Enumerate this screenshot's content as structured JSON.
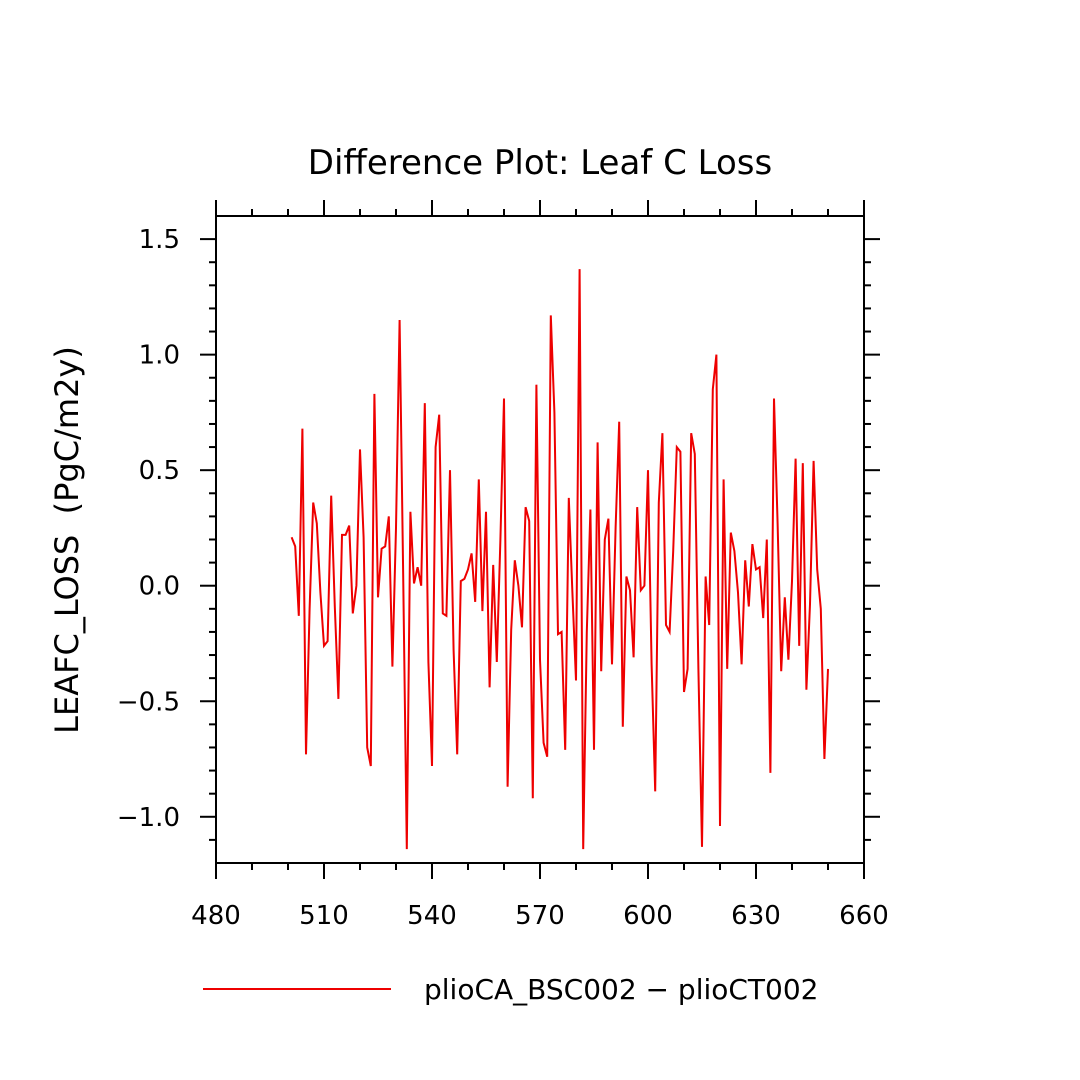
{
  "chart_data": {
    "type": "line",
    "title": "Difference Plot: Leaf C Loss",
    "xlabel": "",
    "ylabel": "LEAFC_LOSS  (PgC/m2y)",
    "xlim": [
      480,
      660
    ],
    "ylim": [
      -1.2,
      1.6
    ],
    "x_ticks": [
      480,
      510,
      540,
      570,
      600,
      630,
      660
    ],
    "x_tick_labels": [
      "480",
      "510",
      "540",
      "570",
      "600",
      "630",
      "660"
    ],
    "y_ticks": [
      1.5,
      1.0,
      0.5,
      0.0,
      -0.5,
      -1.0
    ],
    "y_tick_labels": [
      "1.5",
      "1.0",
      "0.5",
      "0.0",
      "−0.5",
      "−1.0"
    ],
    "grid": false,
    "legend_position": "bottom",
    "series": [
      {
        "name": "plioCA_BSC002 − plioCT002",
        "color": "#ee0000",
        "x": [
          501,
          502,
          503,
          504,
          505,
          506,
          507,
          508,
          509,
          510,
          511,
          512,
          513,
          514,
          515,
          516,
          517,
          518,
          519,
          520,
          521,
          522,
          523,
          524,
          525,
          526,
          527,
          528,
          529,
          530,
          531,
          532,
          533,
          534,
          535,
          536,
          537,
          538,
          539,
          540,
          541,
          542,
          543,
          544,
          545,
          546,
          547,
          548,
          549,
          550,
          551,
          552,
          553,
          554,
          555,
          556,
          557,
          558,
          559,
          560,
          561,
          562,
          563,
          564,
          565,
          566,
          567,
          568,
          569,
          570,
          571,
          572,
          573,
          574,
          575,
          576,
          577,
          578,
          579,
          580,
          581,
          582,
          583,
          584,
          585,
          586,
          587,
          588,
          589,
          590,
          591,
          592,
          593,
          594,
          595,
          596,
          597,
          598,
          599,
          600,
          601,
          602,
          603,
          604,
          605,
          606,
          607,
          608,
          609,
          610,
          611,
          612,
          613,
          614,
          615,
          616,
          617,
          618,
          619,
          620,
          621,
          622,
          623,
          624,
          625,
          626,
          627,
          628,
          629,
          630,
          631,
          632,
          633,
          634,
          635,
          636,
          637,
          638,
          639,
          640,
          641,
          642,
          643,
          644,
          645,
          646,
          647,
          648,
          649,
          650
        ],
        "values": [
          0.21,
          0.17,
          -0.13,
          0.68,
          -0.73,
          -0.1,
          0.36,
          0.27,
          -0.03,
          -0.26,
          -0.24,
          0.39,
          -0.09,
          -0.49,
          0.22,
          0.22,
          0.26,
          -0.12,
          0.0,
          0.59,
          0.21,
          -0.7,
          -0.78,
          0.83,
          -0.05,
          0.16,
          0.17,
          0.3,
          -0.35,
          0.25,
          1.15,
          0.04,
          -1.14,
          0.32,
          0.01,
          0.08,
          0.0,
          0.79,
          -0.33,
          -0.78,
          0.6,
          0.74,
          -0.12,
          -0.13,
          0.5,
          -0.28,
          -0.73,
          0.02,
          0.03,
          0.07,
          0.14,
          -0.07,
          0.46,
          -0.11,
          0.32,
          -0.44,
          0.09,
          -0.33,
          0.2,
          0.81,
          -0.87,
          -0.19,
          0.11,
          0.0,
          -0.18,
          0.34,
          0.28,
          -0.92,
          0.87,
          -0.32,
          -0.68,
          -0.74,
          1.17,
          0.75,
          -0.21,
          -0.2,
          -0.71,
          0.38,
          -0.03,
          -0.41,
          1.37,
          -1.14,
          -0.2,
          0.33,
          -0.71,
          0.62,
          -0.37,
          0.2,
          0.29,
          -0.34,
          0.25,
          0.71,
          -0.61,
          0.04,
          -0.02,
          -0.31,
          0.34,
          -0.02,
          0.0,
          0.5,
          -0.34,
          -0.89,
          0.36,
          0.66,
          -0.17,
          -0.2,
          0.15,
          0.6,
          0.58,
          -0.46,
          -0.36,
          0.66,
          0.57,
          -0.36,
          -1.13,
          0.04,
          -0.17,
          0.85,
          1.0,
          -1.04,
          0.46,
          -0.36,
          0.23,
          0.15,
          -0.03,
          -0.34,
          0.11,
          -0.09,
          0.18,
          0.07,
          0.08,
          -0.14,
          0.2,
          -0.81,
          0.81,
          0.27,
          -0.37,
          -0.05,
          -0.32,
          0.02,
          0.55,
          -0.26,
          0.53,
          -0.45,
          -0.08,
          0.54,
          0.07,
          -0.1,
          -0.75,
          -0.36
        ]
      }
    ]
  }
}
